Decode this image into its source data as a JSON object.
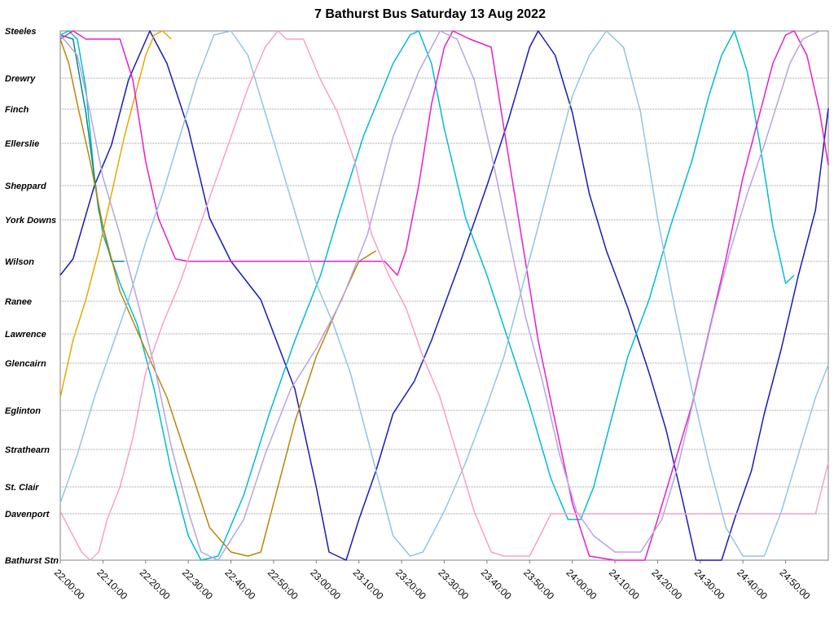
{
  "chart_data": {
    "type": "line",
    "title": "7 Bathurst Bus Saturday 13 Aug 2022",
    "xlabel": "",
    "ylabel": "",
    "grid": true,
    "stops": [
      {
        "name": "Steeles",
        "pos": 0
      },
      {
        "name": "Drewry",
        "pos": 58
      },
      {
        "name": "Finch",
        "pos": 96
      },
      {
        "name": "Ellerslie",
        "pos": 138
      },
      {
        "name": "Sheppard",
        "pos": 190
      },
      {
        "name": "York Downs",
        "pos": 232
      },
      {
        "name": "Wilson",
        "pos": 283
      },
      {
        "name": "Ranee",
        "pos": 332
      },
      {
        "name": "Lawrence",
        "pos": 372
      },
      {
        "name": "Glencairn",
        "pos": 408
      },
      {
        "name": "Eglinton",
        "pos": 466
      },
      {
        "name": "Strathearn",
        "pos": 514
      },
      {
        "name": "St. Clair",
        "pos": 560
      },
      {
        "name": "Davenport",
        "pos": 593
      },
      {
        "name": "Bathurst Stn",
        "pos": 650
      }
    ],
    "ylim": [
      0,
      650
    ],
    "xlim": [
      0,
      180
    ],
    "x_ticks": [
      {
        "min": 0,
        "label": "22:00:00"
      },
      {
        "min": 10,
        "label": "22:10:00"
      },
      {
        "min": 20,
        "label": "22:20:00"
      },
      {
        "min": 30,
        "label": "22:30:00"
      },
      {
        "min": 40,
        "label": "22:40:00"
      },
      {
        "min": 50,
        "label": "22:50:00"
      },
      {
        "min": 60,
        "label": "23:00:00"
      },
      {
        "min": 70,
        "label": "23:10:00"
      },
      {
        "min": 80,
        "label": "23:20:00"
      },
      {
        "min": 90,
        "label": "23:30:00"
      },
      {
        "min": 100,
        "label": "23:40:00"
      },
      {
        "min": 110,
        "label": "23:50:00"
      },
      {
        "min": 120,
        "label": "24:00:00"
      },
      {
        "min": 130,
        "label": "24:10:00"
      },
      {
        "min": 140,
        "label": "24:20:00"
      },
      {
        "min": 150,
        "label": "24:30:00"
      },
      {
        "min": 160,
        "label": "24:40:00"
      },
      {
        "min": 170,
        "label": "24:50:00"
      }
    ],
    "series": [
      {
        "color": "#1a1ab8",
        "points": [
          [
            0,
            300
          ],
          [
            3,
            280
          ],
          [
            8,
            190
          ],
          [
            12,
            140
          ],
          [
            16,
            60
          ],
          [
            21,
            0
          ],
          [
            25,
            40
          ],
          [
            30,
            120
          ],
          [
            35,
            230
          ],
          [
            40,
            283
          ],
          [
            47,
            330
          ],
          [
            55,
            440
          ],
          [
            60,
            560
          ],
          [
            63,
            640
          ],
          [
            67,
            650
          ],
          [
            70,
            600
          ],
          [
            74,
            540
          ],
          [
            78,
            470
          ],
          [
            83,
            430
          ],
          [
            87,
            380
          ],
          [
            94,
            280
          ],
          [
            100,
            190
          ],
          [
            105,
            110
          ],
          [
            110,
            20
          ],
          [
            112,
            0
          ],
          [
            116,
            30
          ],
          [
            120,
            100
          ],
          [
            124,
            200
          ],
          [
            128,
            270
          ],
          [
            133,
            340
          ],
          [
            138,
            420
          ],
          [
            142,
            490
          ],
          [
            146,
            580
          ],
          [
            149,
            650
          ],
          [
            155,
            650
          ],
          [
            158,
            600
          ],
          [
            162,
            540
          ],
          [
            165,
            470
          ],
          [
            169,
            390
          ],
          [
            173,
            300
          ],
          [
            177,
            220
          ],
          [
            180,
            95
          ]
        ]
      },
      {
        "color": "#00bcd4",
        "points": [
          [
            0,
            5
          ],
          [
            2,
            0
          ],
          [
            4,
            10
          ],
          [
            6,
            70
          ],
          [
            8,
            180
          ],
          [
            10,
            250
          ],
          [
            14,
            310
          ],
          [
            18,
            360
          ],
          [
            22,
            440
          ],
          [
            26,
            540
          ],
          [
            30,
            620
          ],
          [
            33,
            650
          ],
          [
            37,
            645
          ],
          [
            43,
            570
          ],
          [
            49,
            470
          ],
          [
            55,
            380
          ],
          [
            61,
            300
          ],
          [
            65,
            230
          ],
          [
            71,
            130
          ],
          [
            78,
            40
          ],
          [
            82,
            5
          ],
          [
            84,
            0
          ],
          [
            87,
            40
          ],
          [
            90,
            120
          ],
          [
            95,
            230
          ],
          [
            100,
            300
          ],
          [
            105,
            380
          ],
          [
            110,
            460
          ],
          [
            115,
            550
          ],
          [
            119,
            600
          ],
          [
            122,
            600
          ],
          [
            125,
            560
          ],
          [
            129,
            480
          ],
          [
            133,
            400
          ],
          [
            138,
            330
          ],
          [
            143,
            240
          ],
          [
            148,
            160
          ],
          [
            152,
            80
          ],
          [
            155,
            30
          ],
          [
            158,
            0
          ],
          [
            161,
            50
          ],
          [
            164,
            140
          ],
          [
            167,
            240
          ],
          [
            170,
            310
          ],
          [
            172,
            300
          ]
        ]
      },
      {
        "color": "#008b8b",
        "points": [
          [
            0,
            5
          ],
          [
            3,
            10
          ],
          [
            6,
            100
          ],
          [
            9,
            220
          ],
          [
            12,
            283
          ],
          [
            15,
            283
          ]
        ]
      },
      {
        "color": "#e6a800",
        "points": [
          [
            0,
            450
          ],
          [
            3,
            380
          ],
          [
            6,
            330
          ],
          [
            9,
            270
          ],
          [
            12,
            200
          ],
          [
            15,
            130
          ],
          [
            18,
            70
          ],
          [
            20,
            30
          ],
          [
            22,
            5
          ],
          [
            24,
            0
          ],
          [
            26,
            10
          ]
        ]
      },
      {
        "color": "#b8860b",
        "points": [
          [
            0,
            10
          ],
          [
            2,
            40
          ],
          [
            4,
            90
          ],
          [
            7,
            160
          ],
          [
            10,
            240
          ],
          [
            14,
            320
          ],
          [
            19,
            380
          ],
          [
            25,
            450
          ],
          [
            30,
            530
          ],
          [
            35,
            610
          ],
          [
            40,
            640
          ],
          [
            44,
            645
          ],
          [
            47,
            640
          ],
          [
            51,
            560
          ],
          [
            55,
            480
          ],
          [
            60,
            400
          ],
          [
            65,
            340
          ],
          [
            70,
            283
          ],
          [
            74,
            270
          ]
        ]
      },
      {
        "color": "#e91eca",
        "points": [
          [
            0,
            10
          ],
          [
            3,
            0
          ],
          [
            6,
            10
          ],
          [
            10,
            10
          ],
          [
            14,
            10
          ],
          [
            17,
            60
          ],
          [
            20,
            160
          ],
          [
            23,
            230
          ],
          [
            27,
            280
          ],
          [
            30,
            283
          ],
          [
            40,
            283
          ],
          [
            50,
            283
          ],
          [
            60,
            283
          ],
          [
            70,
            283
          ],
          [
            76,
            283
          ],
          [
            79,
            300
          ],
          [
            81,
            270
          ],
          [
            84,
            190
          ],
          [
            87,
            90
          ],
          [
            90,
            20
          ],
          [
            92,
            0
          ],
          [
            96,
            10
          ],
          [
            101,
            20
          ],
          [
            104,
            120
          ],
          [
            108,
            250
          ],
          [
            112,
            380
          ],
          [
            116,
            480
          ],
          [
            120,
            580
          ],
          [
            124,
            645
          ],
          [
            130,
            650
          ],
          [
            137,
            650
          ],
          [
            140,
            600
          ],
          [
            144,
            530
          ],
          [
            148,
            460
          ],
          [
            152,
            370
          ],
          [
            156,
            280
          ],
          [
            160,
            180
          ],
          [
            164,
            100
          ],
          [
            167,
            40
          ],
          [
            170,
            5
          ],
          [
            172,
            0
          ],
          [
            175,
            30
          ],
          [
            178,
            100
          ],
          [
            180,
            165
          ]
        ]
      },
      {
        "color": "#b8a4e0",
        "points": [
          [
            0,
            5
          ],
          [
            4,
            30
          ],
          [
            7,
            100
          ],
          [
            10,
            180
          ],
          [
            14,
            250
          ],
          [
            18,
            330
          ],
          [
            22,
            410
          ],
          [
            26,
            510
          ],
          [
            30,
            590
          ],
          [
            33,
            640
          ],
          [
            37,
            650
          ],
          [
            43,
            600
          ],
          [
            48,
            520
          ],
          [
            54,
            440
          ],
          [
            60,
            390
          ],
          [
            66,
            330
          ],
          [
            72,
            250
          ],
          [
            78,
            130
          ],
          [
            84,
            50
          ],
          [
            89,
            0
          ],
          [
            93,
            10
          ],
          [
            97,
            60
          ],
          [
            101,
            150
          ],
          [
            105,
            250
          ],
          [
            109,
            350
          ],
          [
            113,
            430
          ],
          [
            117,
            520
          ],
          [
            121,
            590
          ],
          [
            125,
            620
          ],
          [
            130,
            640
          ],
          [
            136,
            640
          ],
          [
            141,
            600
          ],
          [
            145,
            530
          ],
          [
            149,
            440
          ],
          [
            153,
            350
          ],
          [
            157,
            270
          ],
          [
            161,
            200
          ],
          [
            165,
            140
          ],
          [
            168,
            90
          ],
          [
            171,
            40
          ],
          [
            174,
            10
          ],
          [
            178,
            0
          ]
        ]
      },
      {
        "color": "#f7a0c8",
        "points": [
          [
            0,
            590
          ],
          [
            3,
            620
          ],
          [
            5,
            640
          ],
          [
            7,
            650
          ],
          [
            9,
            640
          ],
          [
            11,
            600
          ],
          [
            14,
            560
          ],
          [
            17,
            500
          ],
          [
            20,
            420
          ],
          [
            24,
            360
          ],
          [
            28,
            310
          ],
          [
            32,
            250
          ],
          [
            36,
            190
          ],
          [
            40,
            130
          ],
          [
            44,
            70
          ],
          [
            48,
            20
          ],
          [
            51,
            0
          ],
          [
            53,
            10
          ],
          [
            57,
            10
          ],
          [
            61,
            60
          ],
          [
            65,
            100
          ],
          [
            69,
            160
          ],
          [
            73,
            250
          ],
          [
            77,
            300
          ],
          [
            81,
            340
          ],
          [
            85,
            400
          ],
          [
            89,
            450
          ],
          [
            93,
            520
          ],
          [
            97,
            590
          ],
          [
            101,
            640
          ],
          [
            104,
            645
          ],
          [
            110,
            645
          ],
          [
            115,
            593
          ],
          [
            120,
            593
          ],
          [
            130,
            593
          ],
          [
            140,
            593
          ],
          [
            150,
            593
          ],
          [
            160,
            593
          ],
          [
            170,
            593
          ],
          [
            177,
            593
          ],
          [
            180,
            530
          ]
        ]
      },
      {
        "color": "#94c4e0",
        "points": [
          [
            0,
            580
          ],
          [
            4,
            520
          ],
          [
            8,
            450
          ],
          [
            12,
            390
          ],
          [
            16,
            330
          ],
          [
            20,
            260
          ],
          [
            24,
            200
          ],
          [
            28,
            130
          ],
          [
            32,
            60
          ],
          [
            36,
            5
          ],
          [
            40,
            0
          ],
          [
            44,
            30
          ],
          [
            48,
            100
          ],
          [
            52,
            170
          ],
          [
            56,
            240
          ],
          [
            60,
            310
          ],
          [
            64,
            360
          ],
          [
            68,
            420
          ],
          [
            72,
            500
          ],
          [
            75,
            560
          ],
          [
            78,
            620
          ],
          [
            82,
            645
          ],
          [
            85,
            640
          ],
          [
            90,
            590
          ],
          [
            95,
            530
          ],
          [
            100,
            460
          ],
          [
            104,
            400
          ],
          [
            108,
            320
          ],
          [
            112,
            240
          ],
          [
            116,
            160
          ],
          [
            120,
            80
          ],
          [
            124,
            30
          ],
          [
            128,
            0
          ],
          [
            132,
            20
          ],
          [
            136,
            100
          ],
          [
            140,
            230
          ],
          [
            144,
            340
          ],
          [
            148,
            440
          ],
          [
            152,
            530
          ],
          [
            156,
            610
          ],
          [
            160,
            645
          ],
          [
            165,
            645
          ],
          [
            169,
            590
          ],
          [
            173,
            520
          ],
          [
            177,
            450
          ],
          [
            180,
            410
          ]
        ]
      }
    ]
  }
}
